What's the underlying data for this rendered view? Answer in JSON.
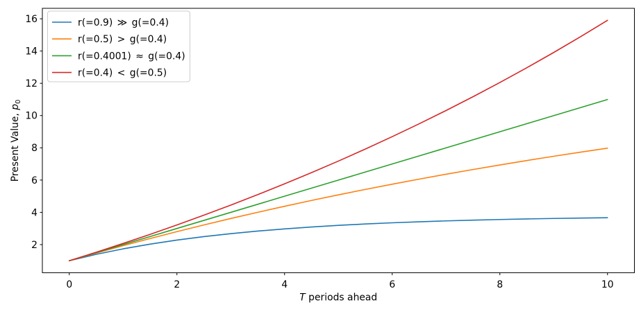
{
  "figure": {
    "background": "#ffffff",
    "frame_color": "#000000",
    "text_color": "#000000"
  },
  "chart_data": {
    "type": "line",
    "title": "",
    "xlabel": "T periods ahead",
    "xlabel_italic_var": "T",
    "xlabel_rest": " periods ahead",
    "ylabel": "Present Value, p₀",
    "ylabel_prefix": "Present Value, ",
    "ylabel_italic_var": "p",
    "ylabel_subscript": "0",
    "xlim": [
      -0.5,
      10.5
    ],
    "ylim": [
      0.2548,
      16.6488
    ],
    "x_tick_labels": [
      "0",
      "2",
      "4",
      "6",
      "8",
      "10"
    ],
    "x_tick_values": [
      0,
      2,
      4,
      6,
      8,
      10
    ],
    "y_tick_labels": [
      "2",
      "4",
      "6",
      "8",
      "10",
      "12",
      "14",
      "16"
    ],
    "y_tick_values": [
      2,
      4,
      6,
      8,
      10,
      12,
      14,
      16
    ],
    "grid": false,
    "legend": {
      "position": "upper-left",
      "border_color": "#cccccc",
      "background": "rgba(255,255,255,0.8)"
    },
    "x": [
      0,
      0.5,
      1,
      1.5,
      2,
      2.5,
      3,
      3.5,
      4,
      4.5,
      5,
      5.5,
      6,
      6.5,
      7,
      7.5,
      8,
      8.5,
      9,
      9.5,
      10
    ],
    "series": [
      {
        "label": "r(=0.9) ≫ g(=0.4)",
        "color": "#1f77b4",
        "values": [
          1.0,
          1.397,
          1.737,
          2.029,
          2.28,
          2.495,
          2.68,
          2.838,
          2.975,
          3.091,
          3.192,
          3.278,
          3.352,
          3.415,
          3.47,
          3.517,
          3.557,
          3.591,
          3.621,
          3.646,
          3.668
        ]
      },
      {
        "label": "r(=0.5) > g(=0.4)",
        "color": "#ff7f0e",
        "values": [
          1.0,
          1.475,
          1.933,
          2.376,
          2.804,
          3.218,
          3.617,
          4.003,
          4.376,
          4.737,
          5.085,
          5.421,
          5.746,
          6.059,
          6.363,
          6.655,
          6.938,
          7.212,
          7.476,
          7.731,
          7.977
        ]
      },
      {
        "label": "r(=0.4001) ≈ g(=0.4)",
        "color": "#2ca02c",
        "values": [
          1.0,
          1.5,
          2.0,
          2.5,
          3.0,
          3.5,
          3.999,
          4.499,
          4.999,
          5.499,
          5.999,
          6.499,
          6.998,
          7.498,
          7.998,
          8.498,
          8.997,
          9.497,
          9.997,
          10.496,
          10.996
        ]
      },
      {
        "label": "r(=0.4) < g(=0.5)",
        "color": "#d62728",
        "values": [
          1.0,
          1.526,
          2.071,
          2.635,
          3.219,
          3.824,
          4.449,
          5.097,
          5.767,
          6.461,
          7.179,
          7.922,
          8.692,
          9.488,
          10.313,
          11.166,
          12.049,
          12.964,
          13.91,
          14.89,
          15.904
        ]
      }
    ]
  }
}
